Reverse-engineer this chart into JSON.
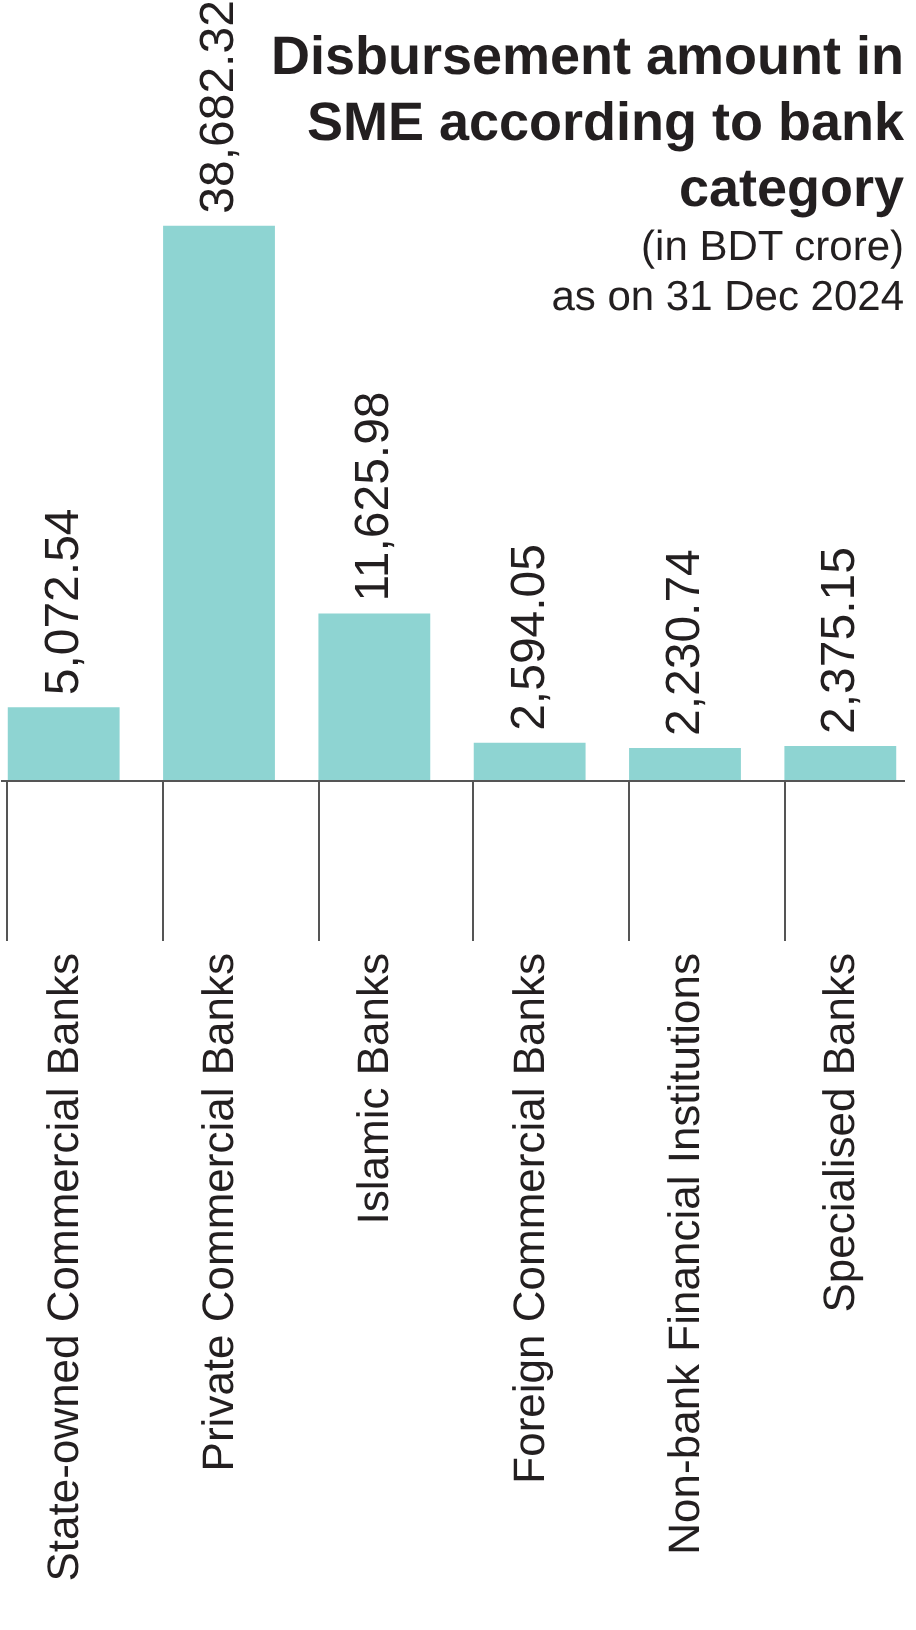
{
  "chart_data": {
    "type": "bar",
    "title": "Disbursement amount in SME according to bank category",
    "subtitle": "(in BDT crore)",
    "annotations": [
      "as on 31 Dec 2024"
    ],
    "categories": [
      "State-owned Commercial Banks",
      "Private Commercial Banks",
      "Islamic Banks",
      "Foreign Commercial Banks",
      "Non-bank Financial Institutions",
      "Specialised Banks"
    ],
    "values": [
      5072.54,
      38682.32,
      11625.98,
      2594.05,
      2230.74,
      2375.15
    ],
    "value_labels": [
      "5,072.54",
      "38,682.32",
      "11,625.98",
      "2,594.05",
      "2,230.74",
      "2,375.15"
    ],
    "color": "#8ed4d2"
  }
}
